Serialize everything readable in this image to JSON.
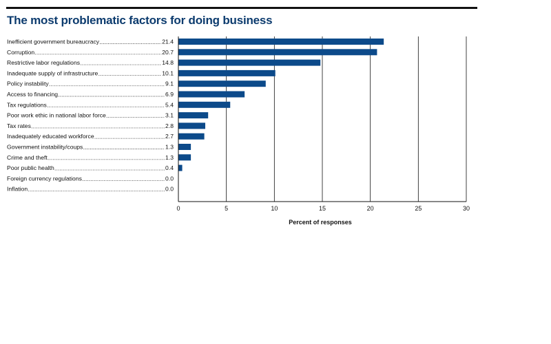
{
  "title": "The most problematic factors for doing business",
  "colors": {
    "bar": "#0c4a8a",
    "title": "#0c3b6e",
    "rule": "#111111",
    "grid": "#111111"
  },
  "chart_data": {
    "type": "bar",
    "orientation": "horizontal",
    "categories": [
      "Inefficient government bureaucracy",
      "Corruption",
      "Restrictive labor regulations",
      "Inadequate supply of infrastructure",
      "Policy instability",
      "Access to financing",
      "Tax regulations",
      "Poor work ethic in national labor force",
      "Tax rates",
      "Inadequately educated workforce",
      "Government instability/coups",
      "Crime and theft",
      "Poor public health",
      "Foreign currency regulations",
      "Inflation"
    ],
    "values": [
      21.4,
      20.7,
      14.8,
      10.1,
      9.1,
      6.9,
      5.4,
      3.1,
      2.8,
      2.7,
      1.3,
      1.3,
      0.4,
      0.0,
      0.0
    ],
    "value_labels": [
      "21.4",
      "20.7",
      "14.8",
      "10.1",
      "9.1",
      "6.9",
      "5.4",
      "3.1",
      "2.8",
      "2.7",
      "1.3",
      "1.3",
      "0.4",
      "0.0",
      "0.0"
    ],
    "xlabel": "Percent of responses",
    "xlim": [
      0,
      30
    ],
    "xticks": [
      0,
      5,
      10,
      15,
      20,
      25,
      30
    ],
    "grid": "vertical"
  }
}
